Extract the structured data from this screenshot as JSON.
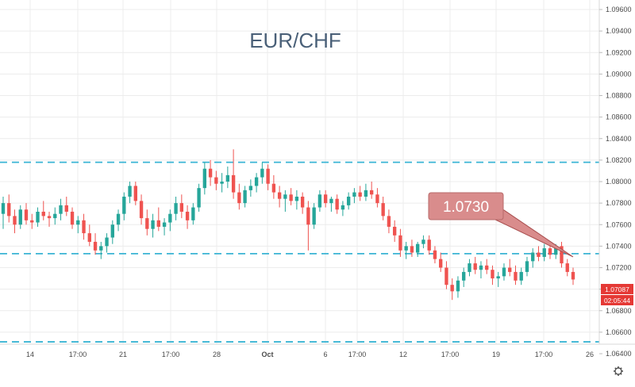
{
  "chart_data": {
    "type": "candlestick",
    "title": "EUR/CHF",
    "ylim": [
      1.064,
      1.097
    ],
    "y_ticks": [
      "1.09600",
      "1.09400",
      "1.09200",
      "1.09000",
      "1.08800",
      "1.08600",
      "1.08400",
      "1.08200",
      "1.08000",
      "1.07800",
      "1.07600",
      "1.07400",
      "1.07200",
      "1.07000",
      "1.06800",
      "1.06600",
      "1.06400"
    ],
    "x_ticks": [
      "14",
      "17:00",
      "21",
      "17:00",
      "28",
      "Oct",
      "6",
      "17:00",
      "12",
      "17:00",
      "19",
      "17:00",
      "26"
    ],
    "horizontal_levels": [
      1.0818,
      1.0733,
      1.0651
    ],
    "callout": {
      "label": "1.0730",
      "value": 1.073
    },
    "last_price": "1.07087",
    "countdown": "02:05:44",
    "colors": {
      "up": "#26a69a",
      "down": "#ef5350",
      "level": "#3ab4d4",
      "callout": "#d98c8c",
      "badge": "#e53935",
      "grid": "#ececec"
    },
    "ohlc": [
      [
        1.077,
        1.0786,
        1.0756,
        1.078
      ],
      [
        1.078,
        1.0788,
        1.0762,
        1.0768
      ],
      [
        1.0768,
        1.0774,
        1.0752,
        1.076
      ],
      [
        1.076,
        1.0778,
        1.0756,
        1.0774
      ],
      [
        1.0774,
        1.078,
        1.076,
        1.0764
      ],
      [
        1.0764,
        1.077,
        1.0756,
        1.0762
      ],
      [
        1.0762,
        1.0776,
        1.0758,
        1.0772
      ],
      [
        1.0772,
        1.0782,
        1.0764,
        1.0768
      ],
      [
        1.0768,
        1.0772,
        1.0758,
        1.0766
      ],
      [
        1.0766,
        1.0776,
        1.076,
        1.077
      ],
      [
        1.077,
        1.0784,
        1.0764,
        1.0778
      ],
      [
        1.0778,
        1.0786,
        1.0768,
        1.0772
      ],
      [
        1.0772,
        1.0776,
        1.0756,
        1.076
      ],
      [
        1.076,
        1.0768,
        1.0752,
        1.0764
      ],
      [
        1.0764,
        1.077,
        1.0746,
        1.0752
      ],
      [
        1.0752,
        1.076,
        1.074,
        1.0744
      ],
      [
        1.0744,
        1.0752,
        1.0732,
        1.0736
      ],
      [
        1.0736,
        1.0744,
        1.0728,
        1.074
      ],
      [
        1.074,
        1.0752,
        1.0734,
        1.0748
      ],
      [
        1.0748,
        1.0764,
        1.0742,
        1.076
      ],
      [
        1.076,
        1.0774,
        1.0754,
        1.077
      ],
      [
        1.077,
        1.079,
        1.0764,
        1.0786
      ],
      [
        1.0786,
        1.08,
        1.078,
        1.0796
      ],
      [
        1.0796,
        1.08,
        1.0778,
        1.0782
      ],
      [
        1.0782,
        1.0788,
        1.076,
        1.0766
      ],
      [
        1.0766,
        1.0774,
        1.075,
        1.0756
      ],
      [
        1.0756,
        1.077,
        1.0748,
        1.0764
      ],
      [
        1.0764,
        1.0776,
        1.0754,
        1.0758
      ],
      [
        1.0758,
        1.0766,
        1.075,
        1.0762
      ],
      [
        1.0762,
        1.0774,
        1.0754,
        1.077
      ],
      [
        1.077,
        1.0786,
        1.0764,
        1.078
      ],
      [
        1.078,
        1.0788,
        1.0766,
        1.0772
      ],
      [
        1.0772,
        1.0778,
        1.0756,
        1.0764
      ],
      [
        1.0764,
        1.078,
        1.076,
        1.0776
      ],
      [
        1.0776,
        1.0798,
        1.0772,
        1.0794
      ],
      [
        1.0794,
        1.0818,
        1.0788,
        1.0812
      ],
      [
        1.0812,
        1.082,
        1.0796,
        1.0804
      ],
      [
        1.0804,
        1.081,
        1.0792,
        1.0798
      ],
      [
        1.0798,
        1.0808,
        1.079,
        1.08
      ],
      [
        1.08,
        1.0814,
        1.0794,
        1.0806
      ],
      [
        1.0806,
        1.083,
        1.0784,
        1.079
      ],
      [
        1.079,
        1.0798,
        1.0774,
        1.078
      ],
      [
        1.078,
        1.0796,
        1.0776,
        1.0792
      ],
      [
        1.0792,
        1.0802,
        1.0786,
        1.0796
      ],
      [
        1.0796,
        1.0808,
        1.079,
        1.0804
      ],
      [
        1.0804,
        1.0818,
        1.0798,
        1.0812
      ],
      [
        1.0812,
        1.0816,
        1.0792,
        1.0798
      ],
      [
        1.0798,
        1.0806,
        1.0784,
        1.079
      ],
      [
        1.079,
        1.0796,
        1.0776,
        1.0784
      ],
      [
        1.0784,
        1.0792,
        1.0772,
        1.0788
      ],
      [
        1.0788,
        1.0794,
        1.0778,
        1.0782
      ],
      [
        1.0782,
        1.0792,
        1.0774,
        1.0786
      ],
      [
        1.0786,
        1.079,
        1.077,
        1.0776
      ],
      [
        1.0776,
        1.0782,
        1.0736,
        1.076
      ],
      [
        1.076,
        1.078,
        1.0756,
        1.0776
      ],
      [
        1.0776,
        1.0792,
        1.0772,
        1.0788
      ],
      [
        1.0788,
        1.0792,
        1.0776,
        1.078
      ],
      [
        1.078,
        1.0786,
        1.0772,
        1.0784
      ],
      [
        1.0784,
        1.0788,
        1.077,
        1.0774
      ],
      [
        1.0774,
        1.0782,
        1.0768,
        1.0778
      ],
      [
        1.0778,
        1.079,
        1.0774,
        1.0786
      ],
      [
        1.0786,
        1.0794,
        1.078,
        1.079
      ],
      [
        1.079,
        1.0796,
        1.0782,
        1.0786
      ],
      [
        1.0786,
        1.0798,
        1.0782,
        1.0792
      ],
      [
        1.0792,
        1.08,
        1.0784,
        1.0788
      ],
      [
        1.0788,
        1.0794,
        1.0776,
        1.078
      ],
      [
        1.078,
        1.0786,
        1.0764,
        1.0768
      ],
      [
        1.0768,
        1.0774,
        1.0752,
        1.0758
      ],
      [
        1.0758,
        1.0764,
        1.0744,
        1.075
      ],
      [
        1.075,
        1.0756,
        1.073,
        1.0736
      ],
      [
        1.0736,
        1.0744,
        1.0728,
        1.074
      ],
      [
        1.074,
        1.0746,
        1.073,
        1.0734
      ],
      [
        1.0734,
        1.0744,
        1.073,
        1.0742
      ],
      [
        1.0742,
        1.075,
        1.0738,
        1.0746
      ],
      [
        1.0746,
        1.075,
        1.0732,
        1.0736
      ],
      [
        1.0736,
        1.074,
        1.0724,
        1.0728
      ],
      [
        1.0728,
        1.0734,
        1.0716,
        1.072
      ],
      [
        1.072,
        1.0726,
        1.07,
        1.0704
      ],
      [
        1.0704,
        1.071,
        1.069,
        1.0698
      ],
      [
        1.0698,
        1.0712,
        1.0692,
        1.0708
      ],
      [
        1.0708,
        1.072,
        1.0702,
        1.0716
      ],
      [
        1.0716,
        1.0728,
        1.0712,
        1.0724
      ],
      [
        1.0724,
        1.073,
        1.0714,
        1.0718
      ],
      [
        1.0718,
        1.0726,
        1.071,
        1.0722
      ],
      [
        1.0722,
        1.0728,
        1.0714,
        1.0718
      ],
      [
        1.0718,
        1.0722,
        1.0704,
        1.071
      ],
      [
        1.071,
        1.0716,
        1.0702,
        1.0712
      ],
      [
        1.0712,
        1.0724,
        1.0708,
        1.072
      ],
      [
        1.072,
        1.0728,
        1.0712,
        1.0716
      ],
      [
        1.0716,
        1.0722,
        1.0704,
        1.0708
      ],
      [
        1.0708,
        1.072,
        1.0704,
        1.0716
      ],
      [
        1.0716,
        1.073,
        1.0712,
        1.0726
      ],
      [
        1.0726,
        1.0738,
        1.072,
        1.0734
      ],
      [
        1.0734,
        1.074,
        1.0726,
        1.073
      ],
      [
        1.073,
        1.0742,
        1.0726,
        1.0738
      ],
      [
        1.0738,
        1.0744,
        1.0728,
        1.0732
      ],
      [
        1.0732,
        1.0742,
        1.0728,
        1.074
      ],
      [
        1.074,
        1.0744,
        1.072,
        1.0724
      ],
      [
        1.0724,
        1.0728,
        1.0712,
        1.0716
      ],
      [
        1.0716,
        1.072,
        1.0704,
        1.0709
      ]
    ]
  }
}
